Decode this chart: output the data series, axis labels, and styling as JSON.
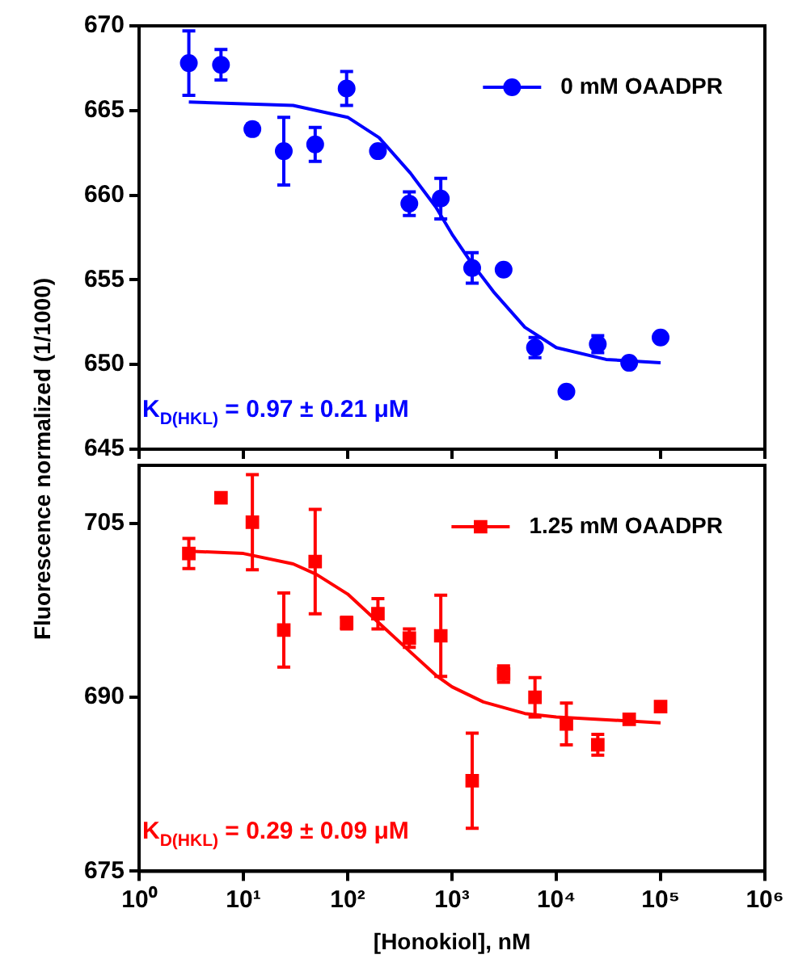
{
  "chart_data": [
    {
      "type": "scatter",
      "log": "x",
      "xlim": [
        1,
        1000000
      ],
      "xticks": [
        {
          "value": 1,
          "label": null
        },
        {
          "value": 10,
          "label": null
        },
        {
          "value": 100,
          "label": null
        },
        {
          "value": 1000,
          "label": null
        },
        {
          "value": 10000,
          "label": null
        },
        {
          "value": 100000,
          "label": null
        },
        {
          "value": 1000000,
          "label": null
        }
      ],
      "ylim": [
        645,
        670
      ],
      "yticks": [
        645,
        650,
        655,
        660,
        665,
        670
      ],
      "tick_labels": "y",
      "ylabel": "Fluorescence normalized (1/1000)",
      "legend": "top right",
      "grid": false,
      "x": [
        3,
        6.1,
        12.2,
        24.4,
        48.8,
        97.7,
        195,
        390,
        781,
        1562,
        3125,
        6250,
        12500,
        25000,
        50000,
        100000
      ],
      "series": [
        {
          "name": "0 mM OAADPR",
          "color": "#0000ff",
          "marker": "circle",
          "values": [
            667.8,
            667.7,
            663.9,
            662.6,
            663.0,
            666.3,
            662.6,
            659.5,
            659.8,
            655.7,
            655.6,
            651.0,
            648.4,
            651.2,
            650.1,
            651.6
          ],
          "errors": [
            1.9,
            0.9,
            0.3,
            2.0,
            1.0,
            1.0,
            null,
            0.7,
            1.2,
            0.9,
            null,
            0.6,
            null,
            0.5,
            null,
            null
          ]
        },
        {
          "type": "line",
          "color": "#0000ff",
          "marker": "none",
          "x": [
            3,
            10,
            30,
            100,
            200,
            400,
            700,
            1000,
            1500,
            2500,
            5000,
            10000,
            30000,
            100000
          ],
          "values": [
            665.5,
            665.4,
            665.3,
            664.6,
            663.4,
            661.3,
            659.3,
            657.7,
            656.1,
            654.3,
            652.2,
            651.0,
            650.3,
            650.1
          ]
        }
      ],
      "annotations": [
        "K$_{D(HKL)}$ = 0.97 ± 0.21 μM"
      ]
    },
    {
      "type": "scatter",
      "log": "x",
      "xlim": [
        1,
        1000000
      ],
      "xticks": [
        {
          "value": 1,
          "label": "10⁰"
        },
        {
          "value": 10,
          "label": "10¹"
        },
        {
          "value": 100,
          "label": "10²"
        },
        {
          "value": 1000,
          "label": "10³"
        },
        {
          "value": 10000,
          "label": "10⁴"
        },
        {
          "value": 100000,
          "label": "10⁵"
        },
        {
          "value": 1000000,
          "label": "10⁶"
        }
      ],
      "ylim": [
        675,
        710
      ],
      "yticks": [
        675,
        690,
        705
      ],
      "xlabel": "[Honokiol], nM",
      "legend": "top right",
      "grid": false,
      "x": [
        3,
        6.1,
        12.2,
        24.4,
        48.8,
        97.7,
        195,
        390,
        781,
        1562,
        3125,
        6250,
        12500,
        25000,
        50000,
        100000
      ],
      "series": [
        {
          "name": "1.25 mM OAADPR",
          "color": "#ff0000",
          "marker": "square",
          "values": [
            702.4,
            707.2,
            705.1,
            695.8,
            701.7,
            696.4,
            697.2,
            695.1,
            695.3,
            682.8,
            692.0,
            690.0,
            687.7,
            685.9,
            688.1,
            689.2
          ],
          "errors": [
            1.3,
            null,
            4.1,
            3.2,
            4.5,
            0.5,
            1.3,
            0.8,
            3.5,
            4.1,
            0.7,
            1.7,
            1.8,
            0.9,
            null,
            null
          ]
        },
        {
          "type": "line",
          "color": "#ff0000",
          "marker": "none",
          "x": [
            3,
            10,
            30,
            50,
            100,
            200,
            400,
            700,
            1000,
            2000,
            5000,
            10000,
            100000
          ],
          "values": [
            702.6,
            702.4,
            701.5,
            700.6,
            698.9,
            696.4,
            693.9,
            691.9,
            690.9,
            689.6,
            688.6,
            688.3,
            687.8
          ]
        }
      ],
      "annotations": [
        "K$_{D(HKL)}$ = 0.29 ± 0.09 μM"
      ]
    }
  ]
}
